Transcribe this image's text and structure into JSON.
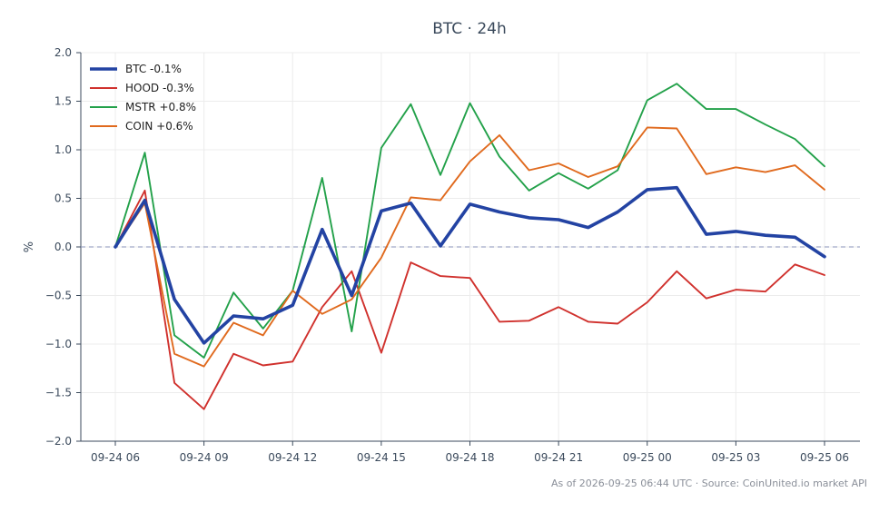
{
  "chart_data": {
    "type": "line",
    "title": "BTC · 24h",
    "xlabel": "",
    "ylabel": "%",
    "ylim": [
      -2.0,
      2.0
    ],
    "yticks": [
      -2.0,
      -1.5,
      -1.0,
      -0.5,
      0.0,
      0.5,
      1.0,
      1.5,
      2.0
    ],
    "ytick_labels": [
      "−2.0",
      "−1.5",
      "−1.0",
      "−0.5",
      "0.0",
      "0.5",
      "1.0",
      "1.5",
      "2.0"
    ],
    "x": [
      "09-24 06",
      "09-24 07",
      "09-24 08",
      "09-24 09",
      "09-24 10",
      "09-24 11",
      "09-24 12",
      "09-24 13",
      "09-24 14",
      "09-24 15",
      "09-24 16",
      "09-24 17",
      "09-24 18",
      "09-24 19",
      "09-24 20",
      "09-24 21",
      "09-24 22",
      "09-24 23",
      "09-25 00",
      "09-25 01",
      "09-25 02",
      "09-25 03",
      "09-25 04",
      "09-25 05",
      "09-25 06"
    ],
    "xticks": [
      "09-24 06",
      "09-24 09",
      "09-24 12",
      "09-24 15",
      "09-24 18",
      "09-24 21",
      "09-25 00",
      "09-25 03",
      "09-25 06"
    ],
    "grid": true,
    "baseline": 0.0,
    "legend_position": "top-left",
    "series": [
      {
        "name": "BTC -0.1%",
        "color": "#2343a3",
        "emphasis": true,
        "values": [
          0.0,
          0.48,
          -0.54,
          -0.99,
          -0.71,
          -0.74,
          -0.6,
          0.18,
          -0.5,
          0.37,
          0.45,
          0.01,
          0.44,
          0.36,
          0.3,
          0.28,
          0.2,
          0.36,
          0.59,
          0.61,
          0.13,
          0.16,
          0.12,
          0.1,
          -0.1
        ]
      },
      {
        "name": "HOOD -0.3%",
        "color": "#d0312d",
        "values": [
          0.0,
          0.58,
          -1.4,
          -1.67,
          -1.1,
          -1.22,
          -1.18,
          -0.62,
          -0.25,
          -1.09,
          -0.16,
          -0.3,
          -0.32,
          -0.77,
          -0.76,
          -0.62,
          -0.77,
          -0.79,
          -0.57,
          -0.25,
          -0.53,
          -0.44,
          -0.46,
          -0.18,
          -0.29
        ]
      },
      {
        "name": "MSTR +0.8%",
        "color": "#23a14a",
        "values": [
          0.0,
          0.97,
          -0.91,
          -1.14,
          -0.47,
          -0.84,
          -0.45,
          0.71,
          -0.87,
          1.02,
          1.47,
          0.74,
          1.48,
          0.93,
          0.58,
          0.76,
          0.6,
          0.79,
          1.51,
          1.68,
          1.42,
          1.42,
          1.26,
          1.11,
          0.83
        ]
      },
      {
        "name": "COIN +0.6%",
        "color": "#e06a1e",
        "values": [
          0.0,
          0.45,
          -1.1,
          -1.23,
          -0.78,
          -0.91,
          -0.45,
          -0.69,
          -0.54,
          -0.11,
          0.51,
          0.48,
          0.88,
          1.15,
          0.79,
          0.86,
          0.72,
          0.83,
          1.23,
          1.22,
          0.75,
          0.82,
          0.77,
          0.84,
          0.59
        ]
      }
    ]
  },
  "footer": {
    "note": "As of 2026-09-25 06:44 UTC · Source: CoinUnited.io market API"
  }
}
